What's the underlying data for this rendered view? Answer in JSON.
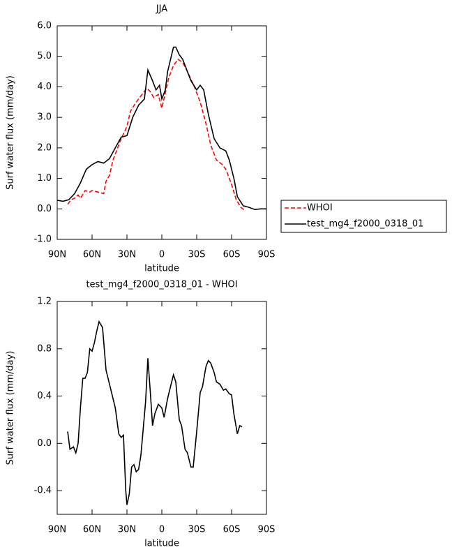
{
  "chart_data": [
    {
      "type": "line",
      "title": "JJA",
      "xlabel": "latitude",
      "ylabel": "Surf water flux (mm/day)",
      "xlim": [
        90,
        -90
      ],
      "ylim": [
        -1.0,
        6.0
      ],
      "xticks": [
        {
          "value": 90,
          "label": "90N"
        },
        {
          "value": 60,
          "label": "60N"
        },
        {
          "value": 30,
          "label": "30N"
        },
        0,
        {
          "value": -30,
          "label": "30S"
        },
        {
          "value": -60,
          "label": "60S"
        },
        {
          "value": -90,
          "label": "90S"
        }
      ],
      "yticks": [
        {
          "value": -1.0,
          "label": "-1.0"
        },
        {
          "value": 0.0,
          "label": "0.0"
        },
        {
          "value": 1.0,
          "label": "1.0"
        },
        {
          "value": 2.0,
          "label": "2.0"
        },
        {
          "value": 3.0,
          "label": "3.0"
        },
        {
          "value": 4.0,
          "label": "4.0"
        },
        {
          "value": 5.0,
          "label": "5.0"
        },
        {
          "value": 6.0,
          "label": "6.0"
        }
      ],
      "legend": "outside-right",
      "series": [
        {
          "name": "WHOI",
          "color": "#ff0000",
          "dash": true,
          "x": [
            81,
            78,
            75,
            72,
            70,
            66,
            62,
            60,
            55,
            50,
            48,
            45,
            42,
            38,
            35,
            30,
            27,
            22,
            18,
            13,
            10,
            7,
            3,
            0,
            -3,
            -6,
            -10,
            -14,
            -18,
            -22,
            -28,
            -33,
            -38,
            -42,
            -47,
            -52,
            -55,
            -60,
            -64,
            -68,
            -72
          ],
          "values": [
            0.15,
            0.3,
            0.35,
            0.45,
            0.35,
            0.6,
            0.55,
            0.6,
            0.55,
            0.5,
            0.9,
            1.1,
            1.6,
            2.0,
            2.3,
            2.7,
            3.2,
            3.5,
            3.7,
            3.95,
            3.85,
            3.65,
            3.75,
            3.3,
            3.8,
            4.3,
            4.7,
            4.9,
            4.8,
            4.5,
            4.0,
            3.5,
            2.8,
            2.1,
            1.6,
            1.45,
            1.3,
            0.8,
            0.3,
            0.05,
            -0.07
          ]
        },
        {
          "name": "test_mg4_f2000_0318_01",
          "color": "#000000",
          "dash": false,
          "x": [
            90,
            85,
            80,
            75,
            70,
            65,
            60,
            55,
            50,
            45,
            40,
            35,
            30,
            25,
            20,
            15,
            12,
            8,
            5,
            2,
            0,
            -3,
            -5,
            -10,
            -12,
            -15,
            -18,
            -22,
            -25,
            -30,
            -33,
            -36,
            -40,
            -45,
            -50,
            -55,
            -58,
            -62,
            -65,
            -70,
            -75,
            -80,
            -85,
            -90
          ],
          "values": [
            0.28,
            0.25,
            0.3,
            0.5,
            0.85,
            1.3,
            1.45,
            1.55,
            1.5,
            1.65,
            2.0,
            2.35,
            2.4,
            3.0,
            3.4,
            3.6,
            4.55,
            4.2,
            3.9,
            4.05,
            3.6,
            3.9,
            4.5,
            5.3,
            5.3,
            5.05,
            4.9,
            4.5,
            4.2,
            3.9,
            4.05,
            3.9,
            3.1,
            2.3,
            2.0,
            1.9,
            1.6,
            1.0,
            0.4,
            0.1,
            0.05,
            -0.02,
            0,
            0
          ]
        }
      ]
    },
    {
      "type": "line",
      "title": "test_mg4_f2000_0318_01 - WHOI",
      "xlabel": "latitude",
      "ylabel": "Surf water flux (mm/day)",
      "xlim": [
        90,
        -90
      ],
      "ylim": [
        -0.6,
        1.2
      ],
      "xticks": [
        {
          "value": 90,
          "label": "90N"
        },
        {
          "value": 60,
          "label": "60N"
        },
        {
          "value": 30,
          "label": "30N"
        },
        0,
        {
          "value": -30,
          "label": "30S"
        },
        {
          "value": -60,
          "label": "60S"
        },
        {
          "value": -90,
          "label": "90S"
        }
      ],
      "yticks": [
        -0.4,
        {
          "value": 0.0,
          "label": "0.0"
        },
        0.4,
        0.8,
        1.2
      ],
      "series": [
        {
          "color": "#000000",
          "dash": false,
          "x": [
            81,
            79,
            76,
            74,
            72,
            70,
            68,
            66,
            64,
            62,
            60,
            58,
            56,
            54,
            51,
            48,
            45,
            40,
            37,
            35,
            33,
            31,
            30,
            28,
            26,
            24,
            22,
            20,
            18,
            14,
            12,
            10,
            8,
            6,
            3,
            0,
            -2,
            -5,
            -8,
            -10,
            -12,
            -15,
            -17,
            -20,
            -22,
            -25,
            -27,
            -30,
            -33,
            -35,
            -38,
            -40,
            -42,
            -45,
            -47,
            -50,
            -53,
            -55,
            -58,
            -60,
            -62,
            -65,
            -67,
            -69
          ],
          "values": [
            0.1,
            -0.05,
            -0.03,
            -0.08,
            0.0,
            0.3,
            0.55,
            0.55,
            0.6,
            0.8,
            0.78,
            0.85,
            0.95,
            1.03,
            0.98,
            0.62,
            0.5,
            0.3,
            0.08,
            0.05,
            0.07,
            -0.4,
            -0.52,
            -0.43,
            -0.2,
            -0.18,
            -0.24,
            -0.22,
            -0.1,
            0.35,
            0.72,
            0.45,
            0.15,
            0.25,
            0.33,
            0.3,
            0.22,
            0.38,
            0.5,
            0.58,
            0.52,
            0.2,
            0.15,
            -0.05,
            -0.08,
            -0.2,
            -0.2,
            0.1,
            0.43,
            0.48,
            0.65,
            0.7,
            0.68,
            0.6,
            0.52,
            0.5,
            0.45,
            0.46,
            0.42,
            0.41,
            0.25,
            0.08,
            0.15,
            0.14
          ]
        }
      ]
    }
  ]
}
